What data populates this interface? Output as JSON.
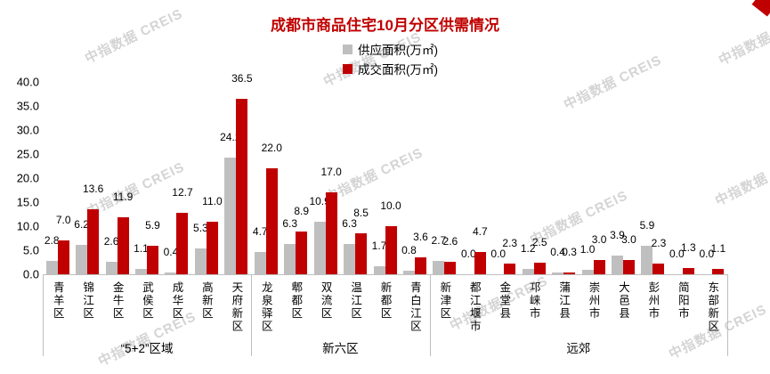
{
  "title": "成都市商品住宅10月分区供需情况",
  "title_color": "#C00000",
  "watermark_text": "中指数据 CREIS",
  "chart_data": {
    "type": "bar",
    "title": "成都市商品住宅10月分区供需情况",
    "categories": [
      "青羊区",
      "锦江区",
      "金牛区",
      "武侯区",
      "成华区",
      "高新区",
      "天府新区",
      "龙泉驿区",
      "郫都区",
      "双流区",
      "温江区",
      "新都区",
      "青白江区",
      "新津区",
      "都江堰市",
      "金堂县",
      "邛崃市",
      "蒲江县",
      "崇州市",
      "大邑县",
      "彭州市",
      "简阳市",
      "东部新区"
    ],
    "series": [
      {
        "name": "供应面积(万㎡)",
        "color": "#BFBFBF",
        "values": [
          2.8,
          6.2,
          2.6,
          1.1,
          0.4,
          5.3,
          24.2,
          4.7,
          6.3,
          10.9,
          6.3,
          1.7,
          0.8,
          2.7,
          0.0,
          0.0,
          1.2,
          0.4,
          1.0,
          3.9,
          5.9,
          0.0,
          0.0
        ]
      },
      {
        "name": "成交面积(万㎡)",
        "color": "#C00000",
        "values": [
          7.0,
          13.6,
          11.9,
          5.9,
          12.7,
          11.0,
          36.5,
          22.0,
          8.9,
          17.0,
          8.5,
          10.0,
          3.6,
          2.6,
          4.7,
          2.3,
          2.5,
          0.3,
          3.0,
          3.0,
          2.3,
          1.3,
          1.1
        ]
      }
    ],
    "groups": [
      {
        "label": "“5+2”区域",
        "count": 7
      },
      {
        "label": "新六区",
        "count": 6
      },
      {
        "label": "远郊",
        "count": 10
      }
    ],
    "yticks": [
      "0.0",
      "5.0",
      "10.0",
      "15.0",
      "20.0",
      "25.0",
      "30.0",
      "35.0",
      "40.0"
    ],
    "ylim": [
      0,
      40
    ],
    "grid": false,
    "legend_position": "top-center"
  }
}
